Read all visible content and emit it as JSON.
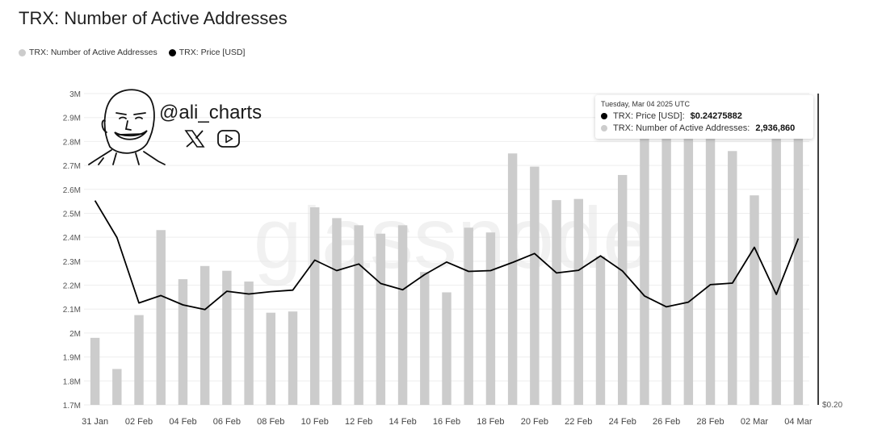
{
  "title": "TRX: Number of Active Addresses",
  "legend": [
    {
      "label": "TRX: Number of Active Addresses",
      "color": "#cccccc"
    },
    {
      "label": "TRX: Price [USD]",
      "color": "#000000"
    }
  ],
  "watermark": "glassnode",
  "author": {
    "handle": "@ali_charts",
    "icons": [
      "avatar-sketch",
      "x-logo-icon",
      "youtube-icon"
    ]
  },
  "tooltip": {
    "date": "Tuesday, Mar 04 2025 UTC",
    "price_label": "TRX: Price [USD]:",
    "price_value": "$0.24275882",
    "addr_label": "TRX: Number of Active Addresses:",
    "addr_value": "2,936,860"
  },
  "chart_data": {
    "type": "bar",
    "dates": [
      "31 Jan",
      "01 Feb",
      "02 Feb",
      "03 Feb",
      "04 Feb",
      "05 Feb",
      "06 Feb",
      "07 Feb",
      "08 Feb",
      "09 Feb",
      "10 Feb",
      "11 Feb",
      "12 Feb",
      "13 Feb",
      "14 Feb",
      "15 Feb",
      "16 Feb",
      "17 Feb",
      "18 Feb",
      "19 Feb",
      "20 Feb",
      "21 Feb",
      "22 Feb",
      "23 Feb",
      "24 Feb",
      "25 Feb",
      "26 Feb",
      "27 Feb",
      "28 Feb",
      "01 Mar",
      "02 Mar",
      "03 Mar",
      "04 Mar"
    ],
    "x_tick_labels": [
      "31 Jan",
      "02 Feb",
      "04 Feb",
      "06 Feb",
      "08 Feb",
      "10 Feb",
      "12 Feb",
      "14 Feb",
      "16 Feb",
      "18 Feb",
      "20 Feb",
      "22 Feb",
      "24 Feb",
      "26 Feb",
      "28 Feb",
      "02 Mar",
      "04 Mar"
    ],
    "series": [
      {
        "name": "TRX: Number of Active Addresses",
        "axis": "left",
        "render": "bar",
        "color": "#cccccc",
        "values": [
          1980000,
          1850000,
          2075000,
          2430000,
          2225000,
          2280000,
          2260000,
          2215000,
          2085000,
          2090000,
          2525000,
          2480000,
          2450000,
          2415000,
          2450000,
          2255000,
          2170000,
          2440000,
          2420000,
          2750000,
          2695000,
          2555000,
          2560000,
          2320000,
          2660000,
          2850000,
          2880000,
          2855000,
          2895000,
          2760000,
          2575000,
          2900000,
          2936860
        ]
      },
      {
        "name": "TRX: Price [USD]",
        "axis": "right",
        "render": "line",
        "color": "#000000",
        "values": [
          0.2525,
          0.243,
          0.2262,
          0.2281,
          0.2257,
          0.2245,
          0.2292,
          0.2285,
          0.2291,
          0.2295,
          0.2372,
          0.2345,
          0.2362,
          0.2312,
          0.2296,
          0.2335,
          0.2367,
          0.2343,
          0.2345,
          0.2366,
          0.2389,
          0.2339,
          0.2346,
          0.2383,
          0.2344,
          0.228,
          0.2252,
          0.2264,
          0.2309,
          0.2313,
          0.2405,
          0.2284,
          0.24275882
        ]
      }
    ],
    "y_left": {
      "min": 1700000,
      "max": 3000000,
      "ticks": [
        1700000,
        1800000,
        1900000,
        2000000,
        2100000,
        2200000,
        2300000,
        2400000,
        2500000,
        2600000,
        2700000,
        2800000,
        2900000,
        3000000
      ],
      "tick_labels": [
        "1.7M",
        "1.8M",
        "1.9M",
        "2M",
        "2.1M",
        "2.2M",
        "2.3M",
        "2.4M",
        "2.5M",
        "2.6M",
        "2.7M",
        "2.8M",
        "2.9M",
        "3M"
      ]
    },
    "y_right": {
      "min": 0.2,
      "max": 0.28,
      "tick_labels": [
        "$0.20"
      ]
    },
    "grid": true,
    "legend_position": "top-left"
  }
}
